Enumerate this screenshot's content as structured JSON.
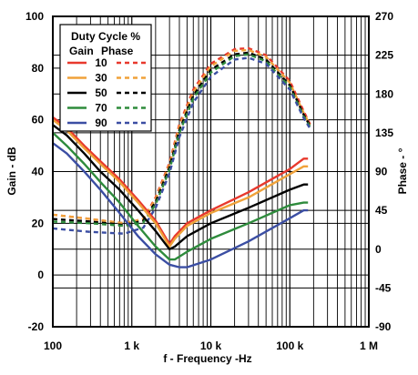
{
  "chart_data": {
    "type": "line",
    "xlabel": "f - Frequency -Hz",
    "ylabel_left": "Gain - dB",
    "ylabel_right": "Phase - °",
    "x_scale": "log",
    "xlim": [
      100,
      1000000
    ],
    "ylim_left": [
      -20,
      100
    ],
    "ylim_right": [
      -90,
      270
    ],
    "grid": true,
    "x_ticks": [
      {
        "value": 100,
        "label": "100"
      },
      {
        "value": 1000,
        "label": "1 k"
      },
      {
        "value": 10000,
        "label": "10 k"
      },
      {
        "value": 100000,
        "label": "100 k"
      },
      {
        "value": 1000000,
        "label": "1 M"
      }
    ],
    "y_ticks_left": [
      {
        "value": 100,
        "label": "100"
      },
      {
        "value": 80,
        "label": "80"
      },
      {
        "value": 60,
        "label": "60"
      },
      {
        "value": 40,
        "label": "40"
      },
      {
        "value": 20,
        "label": "20"
      },
      {
        "value": 0,
        "label": "0"
      },
      {
        "value": -20,
        "label": "-20"
      }
    ],
    "y_ticks_right": [
      {
        "value": 270,
        "label": "270"
      },
      {
        "value": 225,
        "label": "225"
      },
      {
        "value": 180,
        "label": "180"
      },
      {
        "value": 135,
        "label": "135"
      },
      {
        "value": 90,
        "label": "90"
      },
      {
        "value": 45,
        "label": "45"
      },
      {
        "value": 0,
        "label": "0"
      },
      {
        "value": -45,
        "label": "-45"
      },
      {
        "value": -90,
        "label": "-90"
      }
    ],
    "legend": {
      "title": "Duty Cycle %",
      "col_gain": "Gain",
      "col_phase": "Phase",
      "placement": "top-left"
    },
    "series": [
      {
        "name": "10",
        "color": "#e8392d",
        "gain": [
          [
            100,
            61
          ],
          [
            150,
            57
          ],
          [
            250,
            50
          ],
          [
            400,
            44
          ],
          [
            700,
            37
          ],
          [
            1200,
            29
          ],
          [
            2000,
            21
          ],
          [
            3000,
            12
          ],
          [
            3500,
            15
          ],
          [
            5000,
            20
          ],
          [
            10000,
            25
          ],
          [
            30000,
            32
          ],
          [
            100000,
            41
          ],
          [
            150000,
            45
          ],
          [
            170000,
            45
          ]
        ],
        "phase": [
          [
            100,
            40
          ],
          [
            300,
            35
          ],
          [
            800,
            30
          ],
          [
            1400,
            35
          ],
          [
            2000,
            60
          ],
          [
            3000,
            100
          ],
          [
            4000,
            145
          ],
          [
            6000,
            185
          ],
          [
            10000,
            215
          ],
          [
            20000,
            232
          ],
          [
            30000,
            233
          ],
          [
            50000,
            225
          ],
          [
            100000,
            195
          ],
          [
            150000,
            160
          ],
          [
            180000,
            145
          ]
        ]
      },
      {
        "name": "30",
        "color": "#f0a23a",
        "gain": [
          [
            100,
            60
          ],
          [
            150,
            56
          ],
          [
            250,
            49
          ],
          [
            400,
            43
          ],
          [
            700,
            36
          ],
          [
            1200,
            28
          ],
          [
            2000,
            20
          ],
          [
            3000,
            11
          ],
          [
            3500,
            14
          ],
          [
            5000,
            19
          ],
          [
            10000,
            24
          ],
          [
            30000,
            30
          ],
          [
            100000,
            39
          ],
          [
            150000,
            42
          ],
          [
            170000,
            42
          ]
        ],
        "phase": [
          [
            100,
            40
          ],
          [
            300,
            35
          ],
          [
            800,
            30
          ],
          [
            1400,
            35
          ],
          [
            2000,
            58
          ],
          [
            3000,
            98
          ],
          [
            4000,
            142
          ],
          [
            6000,
            182
          ],
          [
            10000,
            212
          ],
          [
            20000,
            230
          ],
          [
            30000,
            231
          ],
          [
            50000,
            223
          ],
          [
            100000,
            193
          ],
          [
            150000,
            158
          ],
          [
            180000,
            144
          ]
        ]
      },
      {
        "name": "50",
        "color": "#000000",
        "gain": [
          [
            100,
            58
          ],
          [
            150,
            54
          ],
          [
            250,
            47
          ],
          [
            400,
            40
          ],
          [
            700,
            33
          ],
          [
            1200,
            25
          ],
          [
            2000,
            17
          ],
          [
            3000,
            10
          ],
          [
            3500,
            11
          ],
          [
            5000,
            15
          ],
          [
            10000,
            20
          ],
          [
            30000,
            26
          ],
          [
            100000,
            33
          ],
          [
            150000,
            35
          ],
          [
            170000,
            35
          ]
        ],
        "phase": [
          [
            100,
            35
          ],
          [
            300,
            32
          ],
          [
            800,
            28
          ],
          [
            1400,
            33
          ],
          [
            2000,
            55
          ],
          [
            3000,
            95
          ],
          [
            4000,
            138
          ],
          [
            6000,
            178
          ],
          [
            10000,
            208
          ],
          [
            20000,
            226
          ],
          [
            30000,
            228
          ],
          [
            50000,
            220
          ],
          [
            100000,
            190
          ],
          [
            150000,
            156
          ],
          [
            180000,
            143
          ]
        ]
      },
      {
        "name": "70",
        "color": "#2e8b3c",
        "gain": [
          [
            100,
            55
          ],
          [
            150,
            50
          ],
          [
            250,
            43
          ],
          [
            400,
            36
          ],
          [
            700,
            28
          ],
          [
            1200,
            19
          ],
          [
            2000,
            11
          ],
          [
            3000,
            6
          ],
          [
            3500,
            6
          ],
          [
            5000,
            9
          ],
          [
            10000,
            14
          ],
          [
            30000,
            20
          ],
          [
            100000,
            27
          ],
          [
            150000,
            28
          ],
          [
            170000,
            28
          ]
        ],
        "phase": [
          [
            100,
            32
          ],
          [
            300,
            30
          ],
          [
            800,
            27
          ],
          [
            1400,
            31
          ],
          [
            2000,
            52
          ],
          [
            3000,
            92
          ],
          [
            4000,
            135
          ],
          [
            6000,
            175
          ],
          [
            10000,
            205
          ],
          [
            20000,
            224
          ],
          [
            30000,
            226
          ],
          [
            50000,
            218
          ],
          [
            100000,
            188
          ],
          [
            150000,
            154
          ],
          [
            180000,
            142
          ]
        ]
      },
      {
        "name": "90",
        "color": "#3b4ea3",
        "gain": [
          [
            100,
            51
          ],
          [
            150,
            47
          ],
          [
            250,
            40
          ],
          [
            400,
            33
          ],
          [
            700,
            24
          ],
          [
            1200,
            15
          ],
          [
            2000,
            8
          ],
          [
            3000,
            4
          ],
          [
            4000,
            3
          ],
          [
            5000,
            3
          ],
          [
            10000,
            6
          ],
          [
            30000,
            13
          ],
          [
            100000,
            22
          ],
          [
            150000,
            25
          ],
          [
            170000,
            25
          ]
        ],
        "phase": [
          [
            100,
            24
          ],
          [
            300,
            20
          ],
          [
            800,
            18
          ],
          [
            1400,
            25
          ],
          [
            2000,
            48
          ],
          [
            3000,
            88
          ],
          [
            4000,
            130
          ],
          [
            6000,
            170
          ],
          [
            10000,
            200
          ],
          [
            20000,
            220
          ],
          [
            30000,
            222
          ],
          [
            50000,
            215
          ],
          [
            100000,
            185
          ],
          [
            150000,
            152
          ],
          [
            180000,
            140
          ]
        ]
      }
    ]
  }
}
